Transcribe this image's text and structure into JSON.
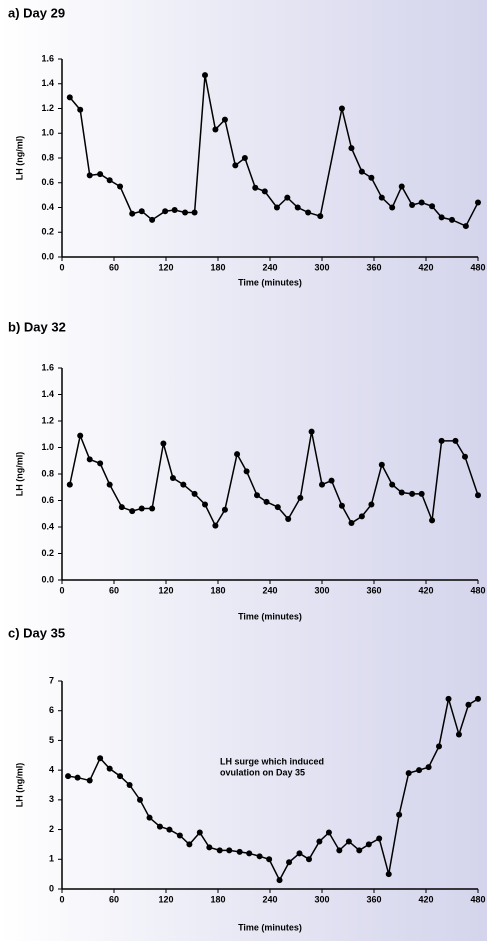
{
  "chart_data": [
    {
      "type": "line",
      "title": "a) Day 29",
      "xlabel": "Time (minutes)",
      "ylabel": "LH (ng/ml)",
      "color": "#000000",
      "x": [
        9,
        21,
        32,
        44,
        55,
        67,
        81,
        92,
        104,
        119,
        130,
        142,
        153,
        165,
        177,
        188,
        200,
        211,
        223,
        234,
        248,
        260,
        272,
        284,
        298,
        323,
        334,
        346,
        357,
        369,
        381,
        392,
        404,
        415,
        427,
        438,
        450,
        466,
        480
      ],
      "values": [
        1.29,
        1.19,
        0.66,
        0.67,
        0.62,
        0.57,
        0.35,
        0.37,
        0.3,
        0.37,
        0.38,
        0.36,
        0.36,
        1.47,
        1.03,
        1.11,
        0.74,
        0.8,
        0.56,
        0.53,
        0.4,
        0.48,
        0.4,
        0.36,
        0.33,
        1.2,
        0.88,
        0.69,
        0.64,
        0.48,
        0.4,
        0.57,
        0.42,
        0.44,
        0.41,
        0.32,
        0.3,
        0.25,
        0.44
      ],
      "xlim": [
        0,
        480
      ],
      "xticks": [
        0,
        60,
        120,
        180,
        240,
        300,
        360,
        420,
        480
      ],
      "ylim": [
        0,
        1.6
      ],
      "yticks": [
        {
          "value": 0,
          "label": "0.0"
        },
        {
          "value": 0.2,
          "label": "0.2"
        },
        {
          "value": 0.4,
          "label": "0.4"
        },
        {
          "value": 0.6,
          "label": "0.6"
        },
        {
          "value": 0.8,
          "label": "0.8"
        },
        {
          "value": 1,
          "label": "1.0"
        },
        {
          "value": 1.2,
          "label": "1.2"
        },
        {
          "value": 1.4,
          "label": "1.4"
        },
        {
          "value": 1.6,
          "label": "1.6"
        }
      ]
    },
    {
      "type": "line",
      "title": "b) Day 32",
      "xlabel": "Time (minutes)",
      "ylabel": "LH (ng/ml)",
      "color": "#000000",
      "x": [
        9,
        21,
        32,
        44,
        55,
        69,
        81,
        92,
        104,
        117,
        128,
        140,
        153,
        165,
        177,
        188,
        202,
        213,
        225,
        236,
        249,
        261,
        275,
        288,
        300,
        311,
        323,
        334,
        346,
        357,
        369,
        381,
        392,
        404,
        415,
        427,
        438,
        454,
        465,
        480
      ],
      "values": [
        0.72,
        1.09,
        0.91,
        0.88,
        0.72,
        0.55,
        0.52,
        0.54,
        0.54,
        1.03,
        0.77,
        0.72,
        0.65,
        0.57,
        0.41,
        0.53,
        0.95,
        0.82,
        0.64,
        0.59,
        0.55,
        0.46,
        0.62,
        1.12,
        0.72,
        0.75,
        0.56,
        0.43,
        0.48,
        0.57,
        0.87,
        0.72,
        0.66,
        0.65,
        0.65,
        0.45,
        1.05,
        1.05,
        0.93,
        0.64
      ],
      "xlim": [
        0,
        480
      ],
      "xticks": [
        0,
        60,
        120,
        180,
        240,
        300,
        360,
        420,
        480
      ],
      "ylim": [
        0,
        1.6
      ],
      "yticks": [
        {
          "value": 0,
          "label": "0.0"
        },
        {
          "value": 0.2,
          "label": "0.2"
        },
        {
          "value": 0.4,
          "label": "0.4"
        },
        {
          "value": 0.6,
          "label": "0.6"
        },
        {
          "value": 0.8,
          "label": "0.8"
        },
        {
          "value": 1,
          "label": "1.0"
        },
        {
          "value": 1.2,
          "label": "1.2"
        },
        {
          "value": 1.4,
          "label": "1.4"
        },
        {
          "value": 1.6,
          "label": "1.6"
        }
      ]
    },
    {
      "type": "line",
      "title": "c) Day 35",
      "xlabel": "Time (minutes)",
      "ylabel": "LH (ng/ml)",
      "color": "#000000",
      "annotation": [
        "LH surge which induced",
        "ovulation on Day 35"
      ],
      "x": [
        7,
        18,
        32,
        44,
        55,
        67,
        78,
        90,
        101,
        113,
        124,
        136,
        147,
        159,
        170,
        182,
        193,
        205,
        216,
        228,
        239,
        251,
        262,
        274,
        285,
        297,
        308,
        320,
        331,
        343,
        354,
        366,
        377,
        389,
        400,
        412,
        423,
        435,
        446,
        458,
        469,
        480
      ],
      "values": [
        3.8,
        3.75,
        3.65,
        4.4,
        4.05,
        3.8,
        3.5,
        3.0,
        2.4,
        2.1,
        2.0,
        1.8,
        1.5,
        1.9,
        1.4,
        1.3,
        1.3,
        1.25,
        1.2,
        1.1,
        1.0,
        0.3,
        0.9,
        1.2,
        1.0,
        1.6,
        1.9,
        1.3,
        1.6,
        1.3,
        1.5,
        1.7,
        0.5,
        2.5,
        3.9,
        4.0,
        4.1,
        4.8,
        6.4,
        5.2,
        6.2,
        6.4
      ],
      "xlim": [
        0,
        480
      ],
      "xticks": [
        0,
        60,
        120,
        180,
        240,
        300,
        360,
        420,
        480
      ],
      "ylim": [
        0,
        7
      ],
      "yticks": [
        0,
        1,
        2,
        3,
        4,
        5,
        6,
        7
      ]
    }
  ]
}
